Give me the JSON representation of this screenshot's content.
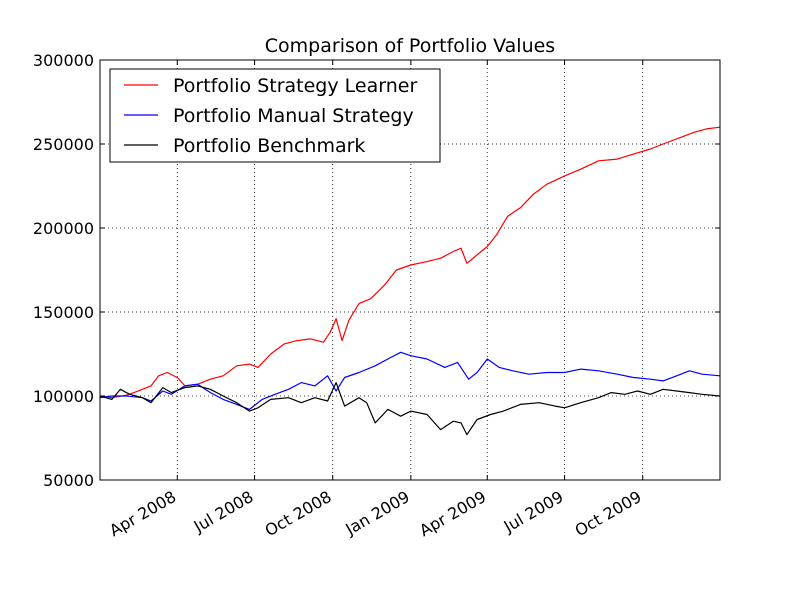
{
  "chart_data": {
    "type": "line",
    "title": "Comparison of Portfolio Values",
    "xlabel": "",
    "ylabel": "",
    "xlim": [
      "2008-01-01",
      "2009-12-31"
    ],
    "ylim": [
      50000,
      300000
    ],
    "yticks": [
      50000,
      100000,
      150000,
      200000,
      250000,
      300000
    ],
    "ytick_labels": [
      "50000",
      "100000",
      "150000",
      "200000",
      "250000",
      "300000"
    ],
    "xticks": [
      "2008-04-01",
      "2008-07-01",
      "2008-10-01",
      "2009-01-01",
      "2009-04-01",
      "2009-07-01",
      "2009-10-01"
    ],
    "xtick_labels": [
      "Apr 2008",
      "Jul 2008",
      "Oct 2008",
      "Jan 2009",
      "Apr 2009",
      "Jul 2009",
      "Oct 2009"
    ],
    "grid": true,
    "legend_position": "top-left",
    "series": [
      {
        "name": "Portfolio Strategy Learner",
        "color": "#ff0000",
        "points": [
          [
            "2008-01-01",
            100000
          ],
          [
            "2008-01-15",
            99000
          ],
          [
            "2008-02-01",
            100500
          ],
          [
            "2008-02-10",
            102000
          ],
          [
            "2008-02-20",
            104000
          ],
          [
            "2008-03-01",
            106000
          ],
          [
            "2008-03-10",
            112000
          ],
          [
            "2008-03-20",
            114000
          ],
          [
            "2008-04-01",
            111000
          ],
          [
            "2008-04-10",
            106000
          ],
          [
            "2008-04-25",
            107000
          ],
          [
            "2008-05-10",
            110000
          ],
          [
            "2008-05-25",
            112000
          ],
          [
            "2008-06-10",
            118000
          ],
          [
            "2008-06-25",
            119000
          ],
          [
            "2008-07-05",
            117000
          ],
          [
            "2008-07-20",
            125000
          ],
          [
            "2008-08-05",
            131000
          ],
          [
            "2008-08-20",
            133000
          ],
          [
            "2008-09-05",
            134000
          ],
          [
            "2008-09-20",
            132000
          ],
          [
            "2008-09-28",
            138000
          ],
          [
            "2008-10-05",
            146000
          ],
          [
            "2008-10-12",
            133000
          ],
          [
            "2008-10-20",
            145000
          ],
          [
            "2008-11-01",
            155000
          ],
          [
            "2008-11-15",
            158000
          ],
          [
            "2008-12-01",
            166000
          ],
          [
            "2008-12-15",
            175000
          ],
          [
            "2009-01-01",
            178000
          ],
          [
            "2009-01-20",
            180000
          ],
          [
            "2009-02-05",
            182000
          ],
          [
            "2009-02-20",
            186000
          ],
          [
            "2009-03-01",
            188000
          ],
          [
            "2009-03-08",
            179000
          ],
          [
            "2009-03-20",
            184000
          ],
          [
            "2009-04-01",
            189000
          ],
          [
            "2009-04-12",
            196000
          ],
          [
            "2009-04-25",
            207000
          ],
          [
            "2009-05-10",
            212000
          ],
          [
            "2009-05-25",
            220000
          ],
          [
            "2009-06-10",
            226000
          ],
          [
            "2009-07-01",
            231000
          ],
          [
            "2009-07-20",
            235000
          ],
          [
            "2009-08-10",
            240000
          ],
          [
            "2009-09-01",
            241000
          ],
          [
            "2009-09-20",
            244000
          ],
          [
            "2009-10-10",
            247000
          ],
          [
            "2009-10-25",
            250000
          ],
          [
            "2009-11-15",
            254000
          ],
          [
            "2009-12-01",
            257000
          ],
          [
            "2009-12-15",
            259000
          ],
          [
            "2009-12-31",
            260000
          ]
        ]
      },
      {
        "name": "Portfolio Manual Strategy",
        "color": "#0000ff",
        "points": [
          [
            "2008-01-01",
            99000
          ],
          [
            "2008-01-15",
            100000
          ],
          [
            "2008-02-01",
            100000
          ],
          [
            "2008-02-20",
            99000
          ],
          [
            "2008-03-01",
            97000
          ],
          [
            "2008-03-15",
            103000
          ],
          [
            "2008-03-25",
            101000
          ],
          [
            "2008-04-10",
            106000
          ],
          [
            "2008-04-25",
            107000
          ],
          [
            "2008-05-10",
            102000
          ],
          [
            "2008-05-25",
            98000
          ],
          [
            "2008-06-10",
            95000
          ],
          [
            "2008-06-25",
            92000
          ],
          [
            "2008-07-10",
            98000
          ],
          [
            "2008-07-25",
            101000
          ],
          [
            "2008-08-10",
            104000
          ],
          [
            "2008-08-25",
            108000
          ],
          [
            "2008-09-10",
            106000
          ],
          [
            "2008-09-25",
            112000
          ],
          [
            "2008-10-05",
            103000
          ],
          [
            "2008-10-15",
            111000
          ],
          [
            "2008-11-01",
            114000
          ],
          [
            "2008-11-20",
            118000
          ],
          [
            "2008-12-05",
            122000
          ],
          [
            "2008-12-20",
            126000
          ],
          [
            "2009-01-01",
            124000
          ],
          [
            "2009-01-20",
            122000
          ],
          [
            "2009-02-10",
            117000
          ],
          [
            "2009-02-25",
            120000
          ],
          [
            "2009-03-10",
            110000
          ],
          [
            "2009-03-20",
            114000
          ],
          [
            "2009-04-01",
            122000
          ],
          [
            "2009-04-15",
            117000
          ],
          [
            "2009-05-01",
            115000
          ],
          [
            "2009-05-20",
            113000
          ],
          [
            "2009-06-10",
            114000
          ],
          [
            "2009-07-01",
            114000
          ],
          [
            "2009-07-20",
            116000
          ],
          [
            "2009-08-10",
            115000
          ],
          [
            "2009-09-01",
            113000
          ],
          [
            "2009-09-20",
            111000
          ],
          [
            "2009-10-10",
            110000
          ],
          [
            "2009-10-25",
            109000
          ],
          [
            "2009-11-10",
            112000
          ],
          [
            "2009-11-25",
            115000
          ],
          [
            "2009-12-10",
            113000
          ],
          [
            "2009-12-31",
            112000
          ]
        ]
      },
      {
        "name": "Portfolio Benchmark",
        "color": "#000000",
        "points": [
          [
            "2008-01-01",
            100000
          ],
          [
            "2008-01-15",
            98000
          ],
          [
            "2008-01-25",
            104000
          ],
          [
            "2008-02-05",
            101000
          ],
          [
            "2008-02-20",
            99000
          ],
          [
            "2008-03-01",
            96000
          ],
          [
            "2008-03-15",
            105000
          ],
          [
            "2008-03-25",
            102000
          ],
          [
            "2008-04-10",
            105000
          ],
          [
            "2008-04-25",
            106000
          ],
          [
            "2008-05-10",
            104000
          ],
          [
            "2008-05-25",
            100000
          ],
          [
            "2008-06-10",
            96000
          ],
          [
            "2008-06-25",
            91000
          ],
          [
            "2008-07-05",
            93000
          ],
          [
            "2008-07-20",
            98000
          ],
          [
            "2008-08-10",
            99000
          ],
          [
            "2008-08-25",
            96000
          ],
          [
            "2008-09-10",
            99000
          ],
          [
            "2008-09-25",
            97000
          ],
          [
            "2008-10-05",
            108000
          ],
          [
            "2008-10-15",
            94000
          ],
          [
            "2008-11-01",
            99000
          ],
          [
            "2008-11-10",
            96000
          ],
          [
            "2008-11-20",
            84000
          ],
          [
            "2008-12-05",
            92000
          ],
          [
            "2008-12-20",
            88000
          ],
          [
            "2009-01-01",
            91000
          ],
          [
            "2009-01-20",
            89000
          ],
          [
            "2009-02-05",
            80000
          ],
          [
            "2009-02-20",
            85000
          ],
          [
            "2009-03-01",
            84000
          ],
          [
            "2009-03-08",
            77000
          ],
          [
            "2009-03-20",
            86000
          ],
          [
            "2009-04-05",
            89000
          ],
          [
            "2009-04-20",
            91000
          ],
          [
            "2009-05-10",
            95000
          ],
          [
            "2009-06-01",
            96000
          ],
          [
            "2009-06-20",
            94000
          ],
          [
            "2009-07-01",
            93000
          ],
          [
            "2009-07-20",
            96000
          ],
          [
            "2009-08-10",
            99000
          ],
          [
            "2009-08-25",
            102000
          ],
          [
            "2009-09-10",
            101000
          ],
          [
            "2009-09-25",
            103000
          ],
          [
            "2009-10-10",
            101000
          ],
          [
            "2009-10-25",
            104000
          ],
          [
            "2009-11-10",
            103000
          ],
          [
            "2009-11-25",
            102000
          ],
          [
            "2009-12-10",
            101000
          ],
          [
            "2009-12-31",
            100000
          ]
        ]
      }
    ]
  }
}
